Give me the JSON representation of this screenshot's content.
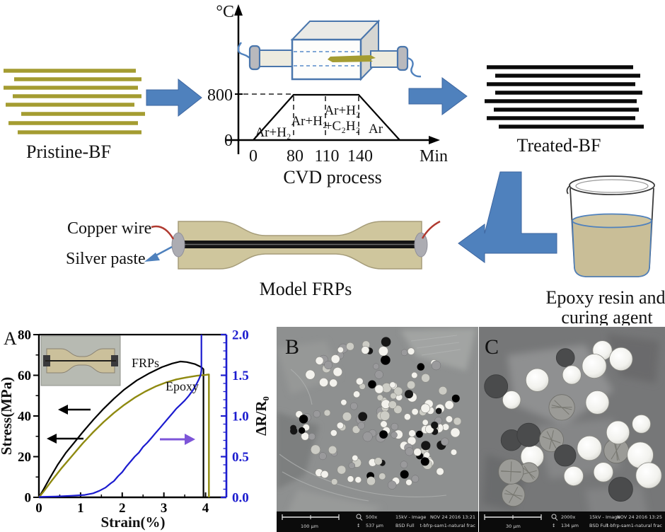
{
  "process": {
    "pristine": "Pristine-BF",
    "treated": "Treated-BF",
    "model": "Model FRPs",
    "copper": "Copper wire",
    "silver": "Silver paste",
    "epoxy_line1": "Epoxy resin and",
    "epoxy_line2": "curing agent"
  },
  "colors": {
    "arrow_blue": "#4f81bd",
    "fiber_olive": "#a49c31",
    "epoxy_tan": "#cfc69d",
    "curve_frps": "#000000",
    "curve_epoxy": "#8f8a10",
    "curve_resistance": "#1c1ccf",
    "annotation_purple": "#7d55d8"
  },
  "chart_data": [
    {
      "type": "line",
      "name": "cvd-temperature-profile",
      "title": "CVD process",
      "xlabel": "Min",
      "ylabel": "°C",
      "xticks": [
        "0",
        "80",
        "110",
        "140"
      ],
      "yticks": [
        "0",
        "800"
      ],
      "plateau_temp_c": 800,
      "profile_points_min_c": [
        [
          0,
          0
        ],
        [
          80,
          800
        ],
        [
          140,
          800
        ],
        [
          200,
          0
        ]
      ],
      "gas_stages": [
        {
          "label": "Ar+H₂"
        },
        {
          "label": "Ar+H₂"
        },
        {
          "label": "Ar+H₂",
          "label2": "+C₂H₂"
        },
        {
          "label": "Ar"
        }
      ]
    },
    {
      "type": "line",
      "name": "stress-strain-resistance",
      "panel": "A",
      "xlabel": "Strain(%)",
      "ylabel_left": "Stress(MPa)",
      "ylabel_right": "ΔR/R₀",
      "xlim": [
        0,
        4.5
      ],
      "ylim_left": [
        0,
        80
      ],
      "ylim_right": [
        0,
        2
      ],
      "xticks": [
        "0",
        "1",
        "2",
        "3",
        "4"
      ],
      "yticks_left": [
        "0",
        "20",
        "40",
        "60",
        "80"
      ],
      "yticks_right": [
        "0.0",
        "0.5",
        "1.0",
        "1.5",
        "2.0"
      ],
      "series": [
        {
          "name": "FRPs",
          "axis": "left",
          "color": "#000000",
          "points": [
            [
              0,
              0
            ],
            [
              0.1,
              3.5
            ],
            [
              0.25,
              9
            ],
            [
              0.45,
              16
            ],
            [
              0.65,
              22
            ],
            [
              0.85,
              27
            ],
            [
              1.05,
              32
            ],
            [
              1.3,
              38
            ],
            [
              1.55,
              43.5
            ],
            [
              1.8,
              48.5
            ],
            [
              2.05,
              53
            ],
            [
              2.35,
              57.5
            ],
            [
              2.65,
              61
            ],
            [
              2.95,
              64
            ],
            [
              3.2,
              65.8
            ],
            [
              3.4,
              66.8
            ],
            [
              3.55,
              66.5
            ],
            [
              3.75,
              65.5
            ],
            [
              3.9,
              64
            ],
            [
              3.95,
              63
            ],
            [
              3.95,
              0
            ]
          ]
        },
        {
          "name": "Epoxy",
          "axis": "left",
          "color": "#8f8a10",
          "points": [
            [
              0,
              0
            ],
            [
              0.1,
              2.5
            ],
            [
              0.3,
              8
            ],
            [
              0.55,
              14.5
            ],
            [
              0.8,
              20.5
            ],
            [
              1.05,
              26.5
            ],
            [
              1.3,
              32
            ],
            [
              1.55,
              37
            ],
            [
              1.8,
              41.5
            ],
            [
              2.05,
              45.5
            ],
            [
              2.3,
              49
            ],
            [
              2.55,
              52
            ],
            [
              2.8,
              54.5
            ],
            [
              3.05,
              56.5
            ],
            [
              3.3,
              58
            ],
            [
              3.55,
              59
            ],
            [
              3.8,
              59.8
            ],
            [
              4.0,
              60.2
            ],
            [
              4.08,
              60.4
            ],
            [
              4.08,
              0
            ]
          ]
        },
        {
          "name": "ΔR/R₀",
          "axis": "right",
          "color": "#1c1ccf",
          "points": [
            [
              0,
              0.005
            ],
            [
              0.4,
              0.01
            ],
            [
              0.8,
              0.02
            ],
            [
              1.1,
              0.03
            ],
            [
              1.3,
              0.05
            ],
            [
              1.45,
              0.08
            ],
            [
              1.6,
              0.12
            ],
            [
              1.72,
              0.17
            ],
            [
              1.8,
              0.2
            ],
            [
              1.9,
              0.26
            ],
            [
              2.0,
              0.31
            ],
            [
              2.1,
              0.38
            ],
            [
              2.2,
              0.44
            ],
            [
              2.3,
              0.5
            ],
            [
              2.4,
              0.55
            ],
            [
              2.5,
              0.62
            ],
            [
              2.6,
              0.67
            ],
            [
              2.7,
              0.73
            ],
            [
              2.8,
              0.79
            ],
            [
              2.9,
              0.85
            ],
            [
              3.0,
              0.91
            ],
            [
              3.1,
              0.97
            ],
            [
              3.2,
              1.03
            ],
            [
              3.3,
              1.09
            ],
            [
              3.4,
              1.14
            ],
            [
              3.5,
              1.19
            ],
            [
              3.6,
              1.25
            ],
            [
              3.7,
              1.32
            ],
            [
              3.78,
              1.39
            ],
            [
              3.84,
              1.45
            ],
            [
              3.88,
              1.5
            ],
            [
              3.9,
              1.56
            ],
            [
              3.9,
              2.0
            ]
          ]
        }
      ]
    }
  ],
  "sem_b": {
    "label": "B",
    "scale_bar": "100 μm",
    "magnification": "500x",
    "field_width": "537 μm",
    "voltage_mode": "15kV - Image",
    "detector": "BSD Full",
    "datetime": "NOV 24 2016 13:21",
    "sample_id": "t-bfrp-sam1-natural frac"
  },
  "sem_c": {
    "label": "C",
    "scale_bar": "30 μm",
    "magnification": "2000x",
    "field_width": "134 μm",
    "voltage_mode": "15kV - Image",
    "detector": "BSD Full",
    "datetime": "NOV 24 2016 13:25",
    "sample_id": "t-bfrp-sam1-natural frac"
  }
}
